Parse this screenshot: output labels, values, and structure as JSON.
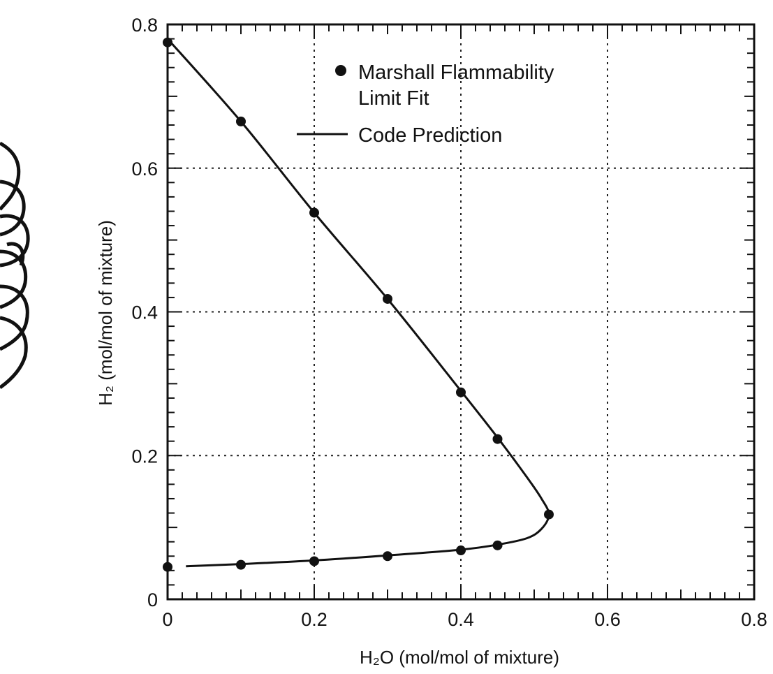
{
  "chart_data": {
    "type": "scatter",
    "x": [
      0.0,
      0.1,
      0.2,
      0.3,
      0.4,
      0.45,
      0.52,
      0.45,
      0.4,
      0.3,
      0.2,
      0.1,
      0.0
    ],
    "series": [
      {
        "name": "Marshall Flammability Limit Fit",
        "kind": "points",
        "points": [
          {
            "x": 0.0,
            "y": 0.775
          },
          {
            "x": 0.1,
            "y": 0.665
          },
          {
            "x": 0.2,
            "y": 0.538
          },
          {
            "x": 0.3,
            "y": 0.418
          },
          {
            "x": 0.4,
            "y": 0.288
          },
          {
            "x": 0.45,
            "y": 0.223
          },
          {
            "x": 0.52,
            "y": 0.118
          },
          {
            "x": 0.45,
            "y": 0.075
          },
          {
            "x": 0.4,
            "y": 0.068
          },
          {
            "x": 0.3,
            "y": 0.06
          },
          {
            "x": 0.2,
            "y": 0.053
          },
          {
            "x": 0.1,
            "y": 0.048
          },
          {
            "x": 0.0,
            "y": 0.045
          }
        ]
      },
      {
        "name": "Code Prediction",
        "kind": "line",
        "points": [
          {
            "x": 0.0,
            "y": 0.78
          },
          {
            "x": 0.1,
            "y": 0.665
          },
          {
            "x": 0.2,
            "y": 0.538
          },
          {
            "x": 0.3,
            "y": 0.418
          },
          {
            "x": 0.4,
            "y": 0.29
          },
          {
            "x": 0.45,
            "y": 0.225
          },
          {
            "x": 0.49,
            "y": 0.17
          },
          {
            "x": 0.51,
            "y": 0.14
          },
          {
            "x": 0.52,
            "y": 0.118
          },
          {
            "x": 0.51,
            "y": 0.098
          },
          {
            "x": 0.49,
            "y": 0.085
          },
          {
            "x": 0.45,
            "y": 0.076
          },
          {
            "x": 0.4,
            "y": 0.069
          },
          {
            "x": 0.3,
            "y": 0.061
          },
          {
            "x": 0.2,
            "y": 0.054
          },
          {
            "x": 0.1,
            "y": 0.049
          },
          {
            "x": 0.025,
            "y": 0.046
          }
        ]
      }
    ],
    "xlabel": "H₂O (mol/mol of mixture)",
    "ylabel": "H₂ (mol/mol of mixture)",
    "xlim": [
      0,
      0.8
    ],
    "ylim": [
      0,
      0.8
    ],
    "xticks": [
      "0",
      "0.2",
      "0.4",
      "0.6",
      "0.8"
    ],
    "yticks": [
      "0",
      "0.2",
      "0.4",
      "0.6",
      "0.8"
    ],
    "grid": true,
    "legend_position": "top-center",
    "legend": {
      "points_label_line1": "Marshall Flammability",
      "points_label_line2": "Limit Fit",
      "line_label": "Code Prediction"
    }
  }
}
